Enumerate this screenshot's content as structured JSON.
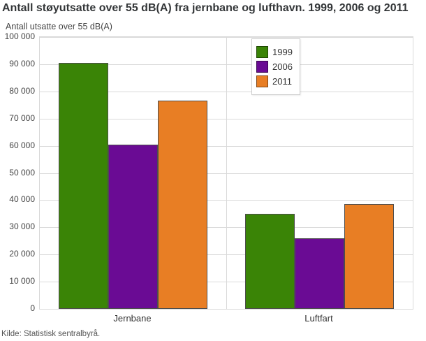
{
  "title": "Antall støyutsatte over 55 dB(A) fra jernbane og lufthavn. 1999, 2006 og 2011",
  "source": "Kilde: Statistisk sentralbyrå.",
  "chart_data": {
    "type": "bar",
    "title": "Antall støyutsatte over 55 dB(A) fra jernbane og lufthavn. 1999, 2006 og 2011",
    "ylabel": "Antall utsatte over 55 dB(A)",
    "xlabel": "",
    "categories": [
      "Jernbane",
      "Luftfart"
    ],
    "series": [
      {
        "name": "1999",
        "color": "#3a8406",
        "values": [
          90500,
          35000
        ]
      },
      {
        "name": "2006",
        "color": "#6a0b94",
        "values": [
          60500,
          26000
        ]
      },
      {
        "name": "2011",
        "color": "#e87e24",
        "values": [
          76500,
          38500
        ]
      }
    ],
    "ylim": [
      0,
      100000
    ],
    "ytick_step": 10000,
    "ytick_labels": [
      "0",
      "10 000",
      "20 000",
      "30 000",
      "40 000",
      "50 000",
      "60 000",
      "70 000",
      "80 000",
      "90 000",
      "100 000"
    ],
    "grid": true,
    "grid_color": "#d9d9d9",
    "bar_border_color": "#4d4d4d",
    "legend_position": "top-right-inside",
    "legend_entries": [
      "1999",
      "2006",
      "2011"
    ]
  }
}
